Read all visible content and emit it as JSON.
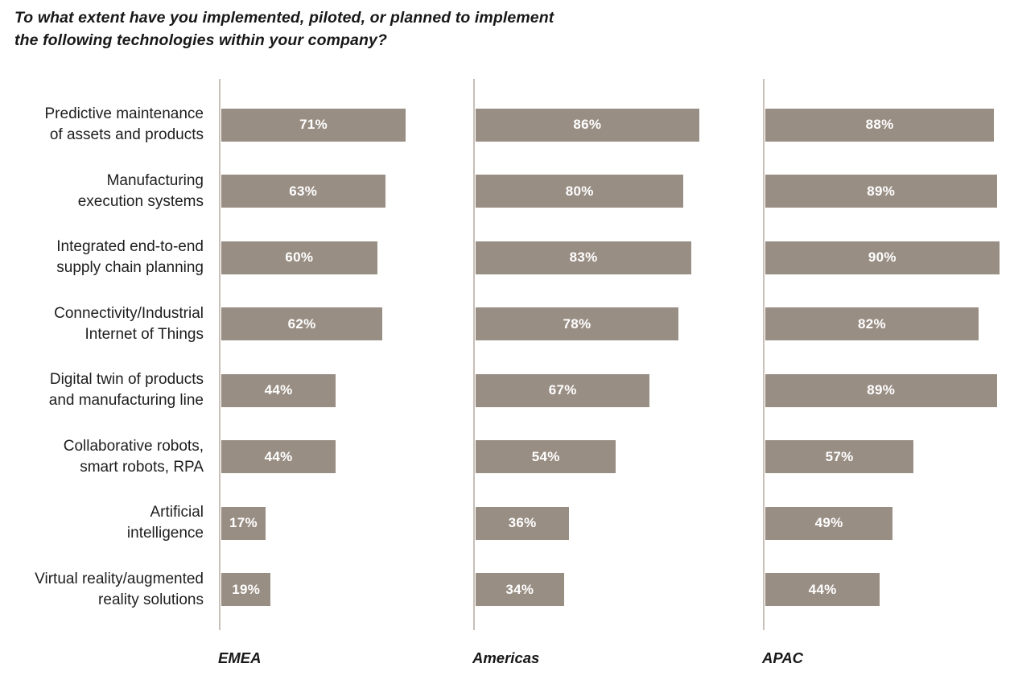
{
  "title": {
    "text": "To what extent have you implemented, piloted, or planned to implement the following technologies within your company?",
    "lines": [
      "To what extent have you implemented, piloted, or planned to implement",
      "the following technologies within your company?"
    ]
  },
  "chart_data": {
    "type": "bar",
    "orientation": "horizontal",
    "title": "To what extent have you implemented, piloted, or planned to implement the following technologies within your company?",
    "unit": "%",
    "xlim": [
      0,
      100
    ],
    "grid": false,
    "legend_position": "none",
    "value_labels": "inside-center",
    "categories": [
      {
        "label": "Predictive maintenance of assets and products",
        "lines": [
          "Predictive maintenance",
          "of assets and products"
        ]
      },
      {
        "label": "Manufacturing execution systems",
        "lines": [
          "Manufacturing",
          "execution systems"
        ]
      },
      {
        "label": "Integrated end-to-end supply chain planning",
        "lines": [
          "Integrated end-to-end",
          "supply chain planning"
        ]
      },
      {
        "label": "Connectivity/Industrial Internet of Things",
        "lines": [
          "Connectivity/Industrial",
          "Internet of Things"
        ]
      },
      {
        "label": "Digital twin of products and manufacturing line",
        "lines": [
          "Digital twin of products",
          "and manufacturing line"
        ]
      },
      {
        "label": "Collaborative robots, smart robots, RPA",
        "lines": [
          "Collaborative robots,",
          "smart robots, RPA"
        ]
      },
      {
        "label": "Artificial intelligence",
        "lines": [
          "Artificial",
          "intelligence"
        ]
      },
      {
        "label": "Virtual reality/augmented reality solutions",
        "lines": [
          "Virtual reality/augmented",
          "reality solutions"
        ]
      }
    ],
    "series": [
      {
        "name": "EMEA",
        "values": [
          71,
          63,
          60,
          62,
          44,
          44,
          17,
          19
        ]
      },
      {
        "name": "Americas",
        "values": [
          86,
          80,
          83,
          78,
          67,
          54,
          36,
          34
        ]
      },
      {
        "name": "APAC",
        "values": [
          88,
          89,
          90,
          82,
          89,
          57,
          49,
          44
        ]
      }
    ],
    "colors": {
      "bar": "#998e84",
      "axis_line": "#c8bfb6",
      "value_label": "#ffffff",
      "category_label": "#1e1e1e",
      "title_text": "#181818"
    }
  }
}
